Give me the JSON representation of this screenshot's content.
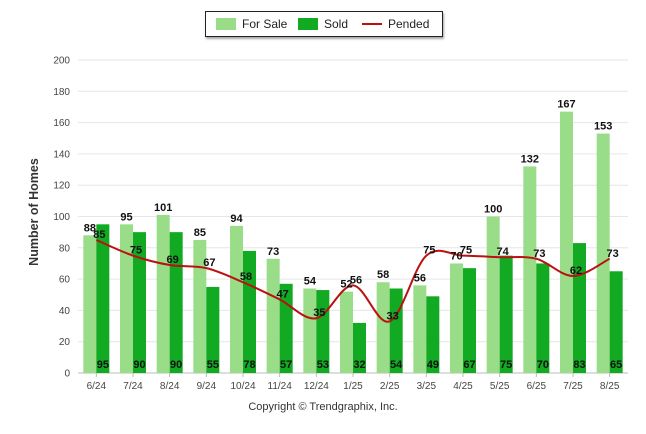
{
  "chart_data": {
    "type": "bar",
    "categories": [
      "6/24",
      "7/24",
      "8/24",
      "9/24",
      "10/24",
      "11/24",
      "12/24",
      "1/25",
      "2/25",
      "3/25",
      "4/25",
      "5/25",
      "6/25",
      "7/25",
      "8/25"
    ],
    "series": [
      {
        "name": "For Sale",
        "type": "bar",
        "color": "#99dd88",
        "values": [
          88,
          95,
          101,
          85,
          94,
          73,
          54,
          52,
          58,
          56,
          70,
          100,
          132,
          167,
          153
        ]
      },
      {
        "name": "Sold",
        "type": "bar",
        "color": "#11aa22",
        "values": [
          95,
          90,
          90,
          55,
          78,
          57,
          53,
          32,
          54,
          49,
          67,
          75,
          70,
          83,
          65
        ]
      },
      {
        "name": "Pended",
        "type": "line",
        "color": "#bb1111",
        "values": [
          85,
          75,
          69,
          67,
          58,
          47,
          35,
          56,
          33,
          75,
          75,
          74,
          73,
          62,
          73
        ]
      }
    ],
    "ylabel": "Number of Homes",
    "xlabel": "",
    "ylim": [
      0,
      200
    ],
    "yticks": [
      0,
      20,
      40,
      60,
      80,
      100,
      120,
      140,
      160,
      180,
      200
    ],
    "grid": true,
    "legend": "top-center"
  },
  "footer": "Copyright © Trendgraphix, Inc."
}
